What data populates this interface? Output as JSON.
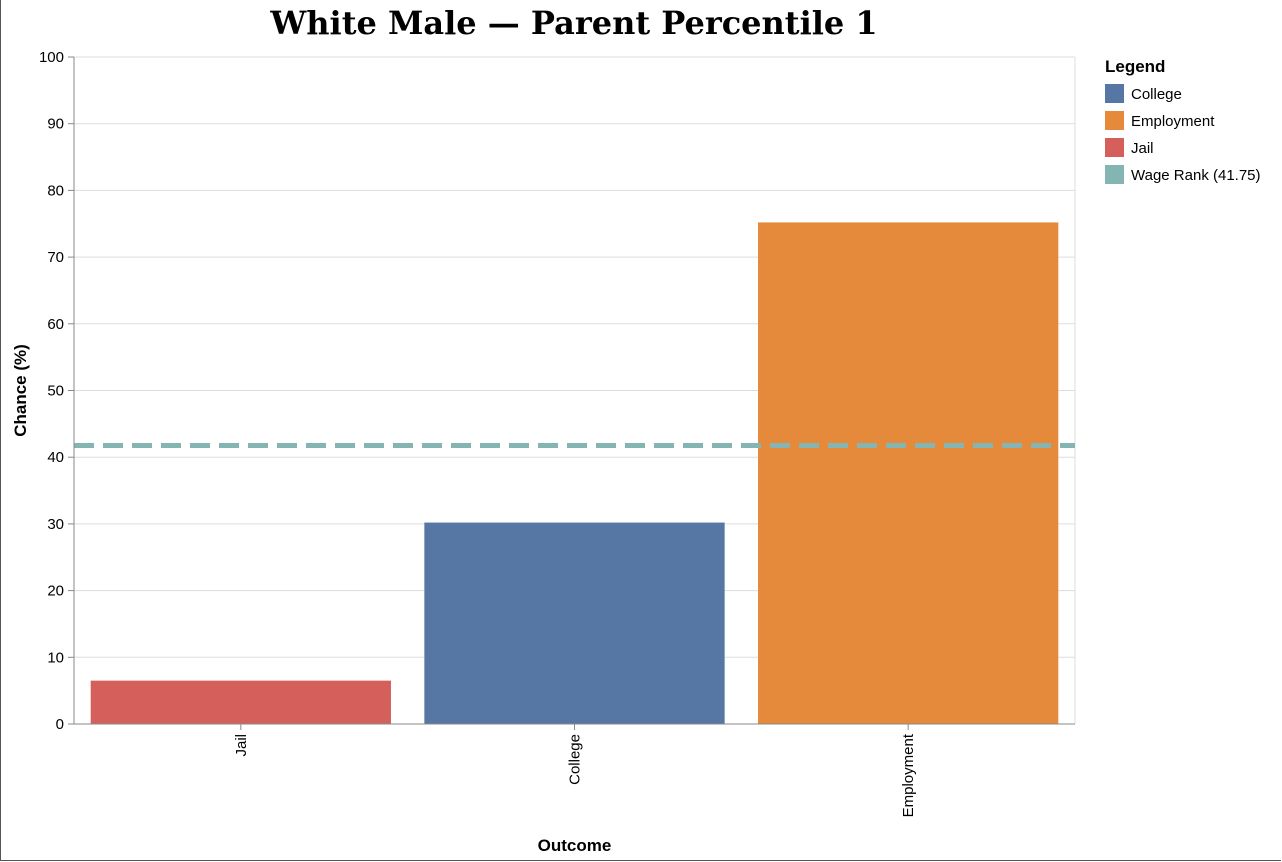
{
  "chart_data": {
    "type": "bar",
    "title": "White Male — Parent Percentile 1",
    "xlabel": "Outcome",
    "ylabel": "Chance (%)",
    "ylim": [
      0,
      100
    ],
    "yticks": [
      0,
      10,
      20,
      30,
      40,
      50,
      60,
      70,
      80,
      90,
      100
    ],
    "grid": true,
    "categories": [
      "Jail",
      "College",
      "Employment"
    ],
    "values": [
      6.5,
      30.2,
      75.2
    ],
    "bar_colors": [
      "#d45f5b",
      "#5677a4",
      "#e58a3a"
    ],
    "reference_line": {
      "label": "Wage Rank (41.75)",
      "value": 41.75,
      "color": "#84b5b2",
      "style": "dashed"
    },
    "legend": {
      "title": "Legend",
      "position": "right",
      "items": [
        {
          "label": "College",
          "color": "#5677a4"
        },
        {
          "label": "Employment",
          "color": "#e58a3a"
        },
        {
          "label": "Jail",
          "color": "#d45f5b"
        },
        {
          "label": "Wage Rank (41.75)",
          "color": "#84b5b2"
        }
      ]
    }
  }
}
